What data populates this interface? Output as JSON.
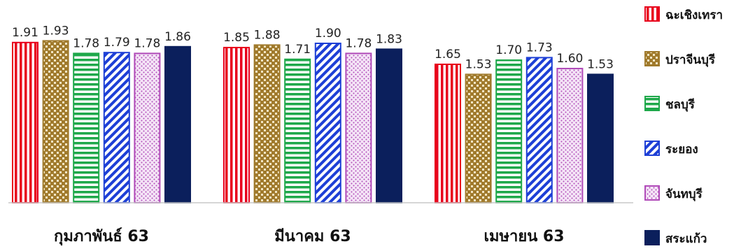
{
  "chart_data": {
    "type": "bar",
    "categories": [
      "กุมภาพันธ์ 63",
      "มีนาคม 63",
      "เมษายน 63"
    ],
    "series": [
      {
        "name": "ฉะเชิงเทรา",
        "values": [
          1.91,
          1.85,
          1.65
        ],
        "color": "#e8001c",
        "pattern": "vertical-stripes"
      },
      {
        "name": "ปราจีนบุรี",
        "values": [
          1.93,
          1.88,
          1.53
        ],
        "color": "#a07a2c",
        "pattern": "checker"
      },
      {
        "name": "ชลบุรี",
        "values": [
          1.78,
          1.71,
          1.7
        ],
        "color": "#1ea84a",
        "pattern": "horizontal-stripes"
      },
      {
        "name": "ระยอง",
        "values": [
          1.79,
          1.9,
          1.73
        ],
        "color": "#1d3fd6",
        "pattern": "diagonal-stripes"
      },
      {
        "name": "จันทบุรี",
        "values": [
          1.78,
          1.78,
          1.6
        ],
        "color": "#b04ab8",
        "pattern": "dots"
      },
      {
        "name": "สระแก้ว",
        "values": [
          1.86,
          1.83,
          1.53
        ],
        "color": "#0b1f5c",
        "pattern": "solid"
      }
    ],
    "value_labels": [
      [
        "1.91",
        "1.85",
        "1.65"
      ],
      [
        "1.93",
        "1.88",
        "1.53"
      ],
      [
        "1.78",
        "1.71",
        "1.70"
      ],
      [
        "1.79",
        "1.90",
        "1.73"
      ],
      [
        "1.78",
        "1.78",
        "1.60"
      ],
      [
        "1.86",
        "1.83",
        "1.53"
      ]
    ],
    "ylim": [
      0,
      2.25
    ],
    "title": "",
    "xlabel": "",
    "ylabel": "",
    "grid": false,
    "legend_position": "right"
  }
}
